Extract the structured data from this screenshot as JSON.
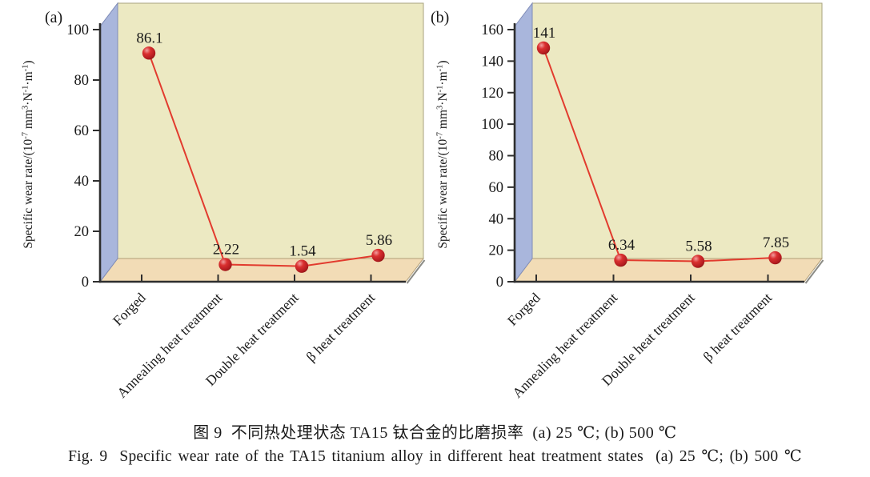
{
  "figure": {
    "caption_zh": "图 9  不同热处理状态 TA15 钛合金的比磨损率  (a) 25 ℃; (b) 500 ℃",
    "caption_en": "Fig. 9  Specific wear rate of the TA15 titanium alloy in different heat treatment states  (a) 25 ℃; (b) 500 ℃"
  },
  "colors": {
    "back_wall": "#ece9c2",
    "back_wall_edge": "#a8a37f",
    "floor": "#f2dcb6",
    "floor_edge": "#b19e76",
    "left_wall": "#a9b6dc",
    "left_wall_edge": "#7f8cb8",
    "shadow": "#8b8b85",
    "axis": "#2e2e2e",
    "line": "#e23b2e",
    "sphere_highlight": "#f29f9f",
    "sphere_mid": "#da3030",
    "sphere_deep": "#b01b1f",
    "sphere_dark": "#7c0e0e",
    "text": "#1a1a1a"
  },
  "chart_data": [
    {
      "type": "line",
      "panel_label": "(a)",
      "categories": [
        "Forged",
        "Annealing heat treatment",
        "Double heat treatment",
        "β heat treatment"
      ],
      "values": [
        86.1,
        2.22,
        1.54,
        5.86
      ],
      "point_labels": [
        "86.1",
        "2.22",
        "1.54",
        "5.86"
      ],
      "ylabel": "Specific wear rate/(10⁻⁷ mm³·N⁻¹·m⁻¹)",
      "ylabel_parts": [
        {
          "t": "Specific wear rate/(10"
        },
        {
          "t": "-7",
          "sup": true
        },
        {
          "t": " mm"
        },
        {
          "t": "3",
          "sup": true
        },
        {
          "t": "·N"
        },
        {
          "t": "-1",
          "sup": true
        },
        {
          "t": "·m"
        },
        {
          "t": "-1",
          "sup": true
        },
        {
          "t": ")"
        }
      ],
      "yticks": [
        0,
        20,
        40,
        60,
        80,
        100
      ],
      "ylim": [
        0,
        100
      ],
      "xlabel": "",
      "grid": false,
      "legend": "none"
    },
    {
      "type": "line",
      "panel_label": "(b)",
      "categories": [
        "Forged",
        "Annealing heat treatment",
        "Double heat treatment",
        "β heat treatment"
      ],
      "values": [
        141,
        6.34,
        5.58,
        7.85
      ],
      "point_labels": [
        "141",
        "6.34",
        "5.58",
        "7.85"
      ],
      "ylabel": "Specific wear rate/(10⁻⁷ mm³·N⁻¹·m⁻¹)",
      "ylabel_parts": [
        {
          "t": "Specific wear rate/(10"
        },
        {
          "t": "-7",
          "sup": true
        },
        {
          "t": " mm"
        },
        {
          "t": "3",
          "sup": true
        },
        {
          "t": "·N"
        },
        {
          "t": "-1",
          "sup": true
        },
        {
          "t": "·m"
        },
        {
          "t": "-1",
          "sup": true
        },
        {
          "t": ")"
        }
      ],
      "yticks": [
        0,
        20,
        40,
        60,
        80,
        100,
        120,
        140,
        160
      ],
      "ylim": [
        0,
        160
      ],
      "xlabel": "",
      "grid": false,
      "legend": "none"
    }
  ]
}
